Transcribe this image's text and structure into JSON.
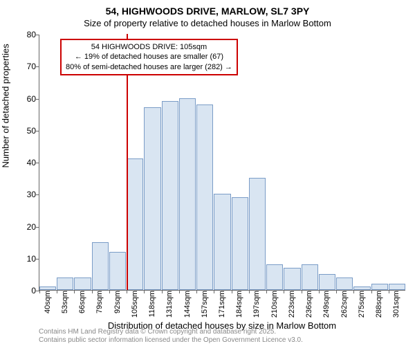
{
  "title_main": "54, HIGHWOODS DRIVE, MARLOW, SL7 3PY",
  "title_sub": "Size of property relative to detached houses in Marlow Bottom",
  "ylabel": "Number of detached properties",
  "xlabel": "Distribution of detached houses by size in Marlow Bottom",
  "chart": {
    "type": "histogram",
    "ylim": [
      0,
      80
    ],
    "ytick_step": 10,
    "yticks": [
      0,
      10,
      20,
      30,
      40,
      50,
      60,
      70,
      80
    ],
    "xticks": [
      "40sqm",
      "53sqm",
      "66sqm",
      "79sqm",
      "92sqm",
      "105sqm",
      "118sqm",
      "131sqm",
      "144sqm",
      "157sqm",
      "171sqm",
      "184sqm",
      "197sqm",
      "210sqm",
      "223sqm",
      "236sqm",
      "249sqm",
      "262sqm",
      "275sqm",
      "288sqm",
      "301sqm"
    ],
    "bar_values": [
      1,
      4,
      4,
      15,
      12,
      41,
      57,
      59,
      60,
      58,
      30,
      29,
      35,
      8,
      7,
      8,
      5,
      4,
      1,
      2,
      2
    ],
    "bar_fill": "#d9e5f2",
    "bar_stroke": "#7a9cc7",
    "vline_at_index": 5,
    "vline_color": "#cc0000",
    "background": "#ffffff"
  },
  "annotation": {
    "line1": "54 HIGHWOODS DRIVE: 105sqm",
    "line2": "← 19% of detached houses are smaller (67)",
    "line3": "80% of semi-detached houses are larger (282) →",
    "border_color": "#cc0000"
  },
  "footer": {
    "line1": "Contains HM Land Registry data © Crown copyright and database right 2025.",
    "line2": "Contains public sector information licensed under the Open Government Licence v3.0."
  }
}
